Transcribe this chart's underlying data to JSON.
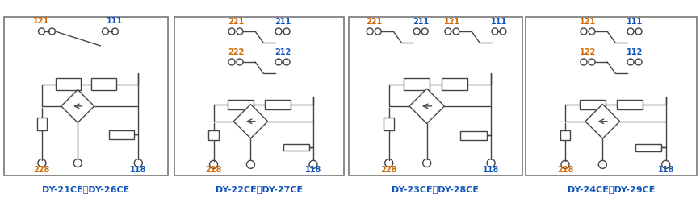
{
  "panels": [
    {
      "label": "DY-21CE，DY-26CE",
      "contacts": [
        {
          "row": 0,
          "type": "single_wide",
          "labels": [
            "121",
            "111"
          ],
          "colors": [
            "#d46800",
            "#1155bb"
          ]
        }
      ],
      "bot_labels": [
        "228",
        "118"
      ],
      "bot_colors": [
        "#d46800",
        "#1155bb"
      ]
    },
    {
      "label": "DY-22CE，DY-27CE",
      "contacts": [
        {
          "row": 0,
          "type": "double",
          "labels": [
            "221",
            "211"
          ],
          "colors": [
            "#d46800",
            "#1155bb"
          ]
        },
        {
          "row": 1,
          "type": "double",
          "labels": [
            "222",
            "212"
          ],
          "colors": [
            "#d46800",
            "#1155bb"
          ]
        }
      ],
      "bot_labels": [
        "228",
        "118"
      ],
      "bot_colors": [
        "#d46800",
        "#1155bb"
      ]
    },
    {
      "label": "DY-23CE，DY-28CE",
      "contacts": [
        {
          "row": 0,
          "type": "quad",
          "labels": [
            "221",
            "211",
            "121",
            "111"
          ],
          "colors": [
            "#d46800",
            "#1155bb",
            "#d46800",
            "#1155bb"
          ]
        }
      ],
      "bot_labels": [
        "228",
        "118"
      ],
      "bot_colors": [
        "#d46800",
        "#1155bb"
      ]
    },
    {
      "label": "DY-24CE，DY-29CE",
      "contacts": [
        {
          "row": 0,
          "type": "double",
          "labels": [
            "121",
            "111"
          ],
          "colors": [
            "#d46800",
            "#1155bb"
          ]
        },
        {
          "row": 1,
          "type": "double",
          "labels": [
            "122",
            "112"
          ],
          "colors": [
            "#d46800",
            "#1155bb"
          ]
        }
      ],
      "bot_labels": [
        "228",
        "118"
      ],
      "bot_colors": [
        "#d46800",
        "#1155bb"
      ]
    }
  ],
  "border_color": "#777777",
  "cc": "#444444",
  "label_color": "#1155bb",
  "fig_bg": "#ffffff"
}
